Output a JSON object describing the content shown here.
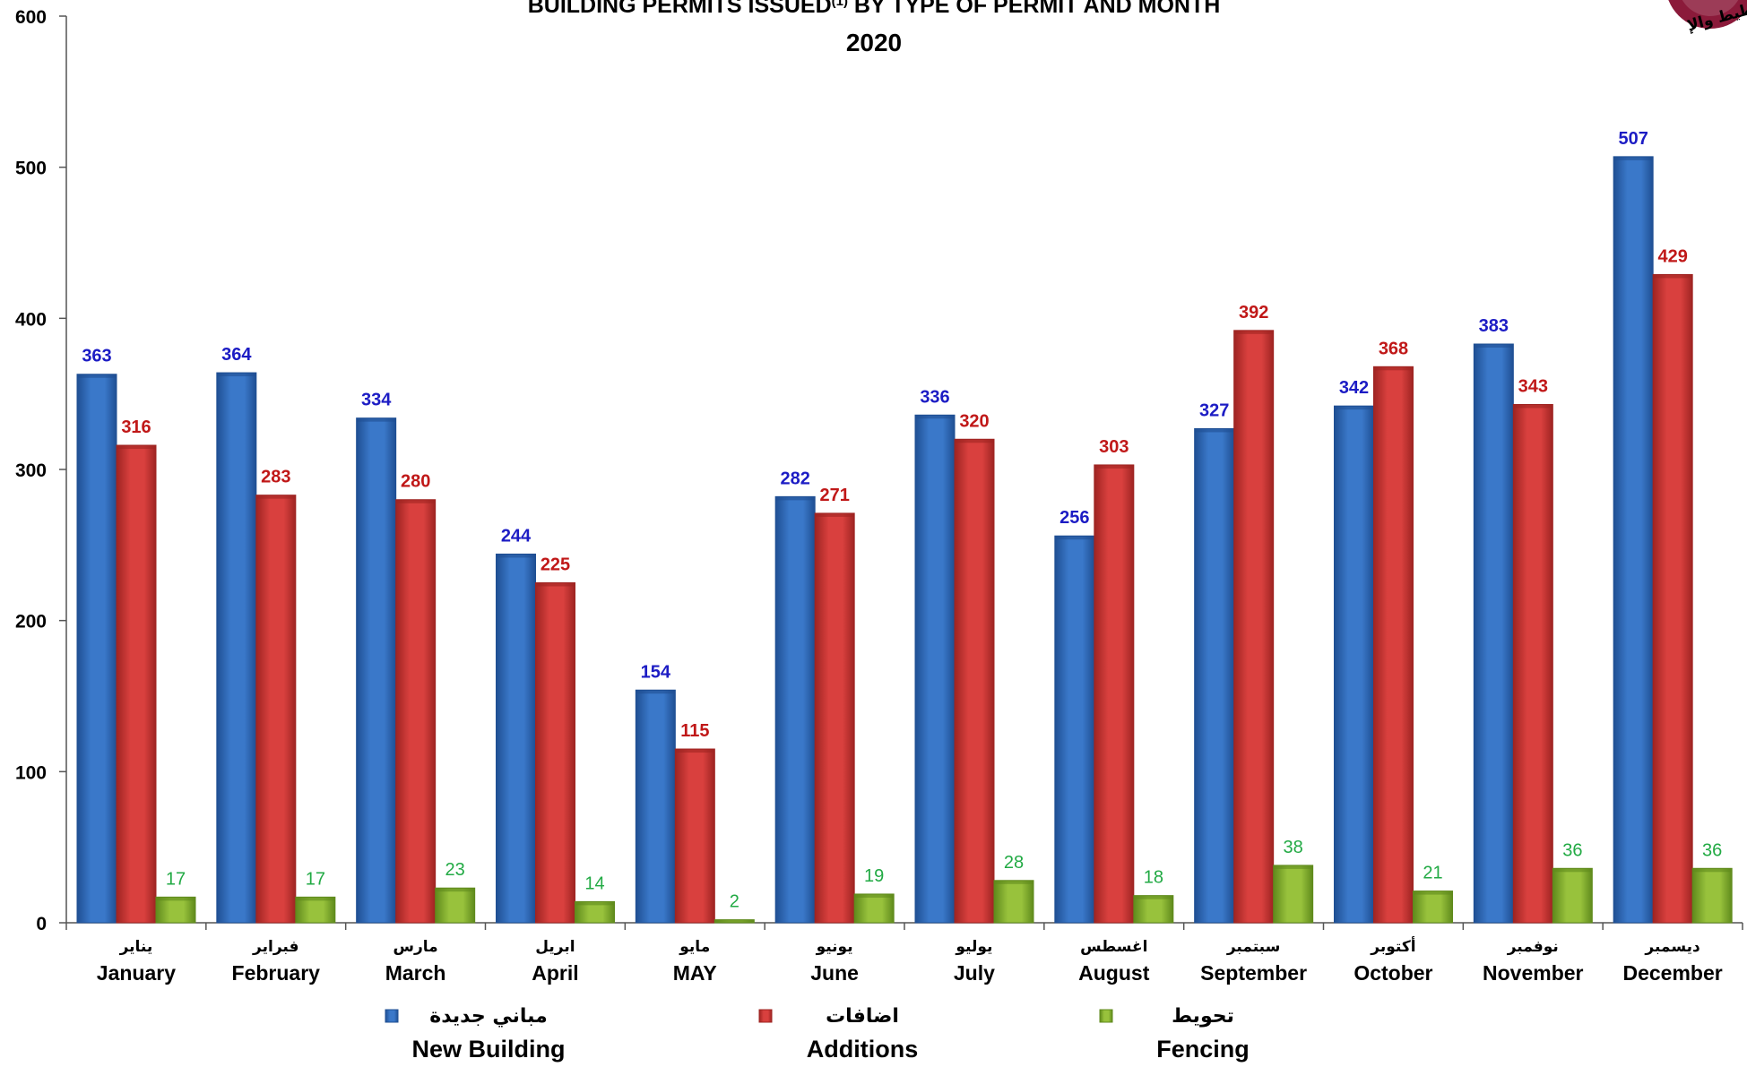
{
  "chart_data": {
    "type": "bar",
    "title": "BUILDING PERMITS ISSUED",
    "title_superscript": "(1)",
    "title_rest": " BY TYPE OF PERMIT AND MONTH",
    "subtitle": "2020",
    "ylim": [
      0,
      600
    ],
    "yticks": [
      0,
      100,
      200,
      300,
      400,
      500,
      600
    ],
    "grid": false,
    "legend_position": "bottom",
    "categories": [
      {
        "ar": "يناير",
        "en": "January"
      },
      {
        "ar": "فبراير",
        "en": "February"
      },
      {
        "ar": "مارس",
        "en": "March"
      },
      {
        "ar": "ابريل",
        "en": "April"
      },
      {
        "ar": "مايو",
        "en": "MAY"
      },
      {
        "ar": "يونيو",
        "en": "June"
      },
      {
        "ar": "يوليو",
        "en": "July"
      },
      {
        "ar": "اغسطس",
        "en": "August"
      },
      {
        "ar": "سبتمبر",
        "en": "September"
      },
      {
        "ar": "أكتوبر",
        "en": "October"
      },
      {
        "ar": "نوفمبر",
        "en": "November"
      },
      {
        "ar": "ديسمبر",
        "en": "December"
      }
    ],
    "series": [
      {
        "name": "New Building",
        "name_ar": "مباني جديدة",
        "color": "#3a78c9",
        "color_dark": "#1f4f93",
        "label_color": "#1c1cc4",
        "label_bold": true,
        "values": [
          363,
          364,
          334,
          244,
          154,
          282,
          336,
          256,
          327,
          342,
          383,
          507
        ]
      },
      {
        "name": "Additions",
        "name_ar": "اضافات",
        "color": "#d9403e",
        "color_dark": "#9e2422",
        "label_color": "#c01818",
        "label_bold": true,
        "values": [
          316,
          283,
          280,
          225,
          115,
          271,
          320,
          303,
          392,
          368,
          343,
          429
        ]
      },
      {
        "name": "Fencing",
        "name_ar": "تحويط",
        "color": "#98c23c",
        "color_dark": "#5f8a1c",
        "label_color": "#22aa44",
        "label_bold": false,
        "values": [
          17,
          17,
          23,
          14,
          2,
          19,
          28,
          18,
          38,
          21,
          36,
          36
        ]
      }
    ]
  },
  "logo": {
    "color": "#8b1a3a",
    "text": "تخطيط والإ"
  }
}
